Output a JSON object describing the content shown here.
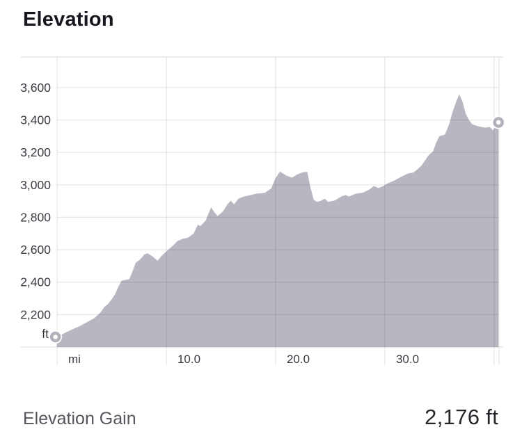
{
  "title": "Elevation",
  "summary": {
    "label": "Elevation Gain",
    "value": "2,176 ft"
  },
  "chart_data": {
    "type": "area",
    "title": "Elevation",
    "xlabel": "mi",
    "ylabel": "ft",
    "x_range": [
      0,
      40.45
    ],
    "y_range": [
      2000,
      3788
    ],
    "grid": true,
    "x_ticks": [
      {
        "mile": 0,
        "label": "mi"
      },
      {
        "mile": 10,
        "label": "10.0"
      },
      {
        "mile": 20,
        "label": "20.0"
      },
      {
        "mile": 30,
        "label": "30.0"
      },
      {
        "mile": 40,
        "label": ""
      }
    ],
    "y_ticks": [
      {
        "value": 2200,
        "label": "2,200"
      },
      {
        "value": 2400,
        "label": "2,400"
      },
      {
        "value": 2600,
        "label": "2,600"
      },
      {
        "value": 2800,
        "label": "2,800"
      },
      {
        "value": 3000,
        "label": "3,000"
      },
      {
        "value": 3200,
        "label": "3,200"
      },
      {
        "value": 3400,
        "label": "3,400"
      },
      {
        "value": 3600,
        "label": "3,600"
      }
    ],
    "y_unit_label": "ft",
    "start_point": {
      "mi": 0,
      "ft": 2062
    },
    "end_point": {
      "mi": 40.4,
      "ft": 3385
    },
    "profile": [
      [
        0,
        2062
      ],
      [
        0.4,
        2075
      ],
      [
        0.8,
        2090
      ],
      [
        1.5,
        2112
      ],
      [
        2.1,
        2130
      ],
      [
        2.7,
        2152
      ],
      [
        3.4,
        2178
      ],
      [
        4.0,
        2215
      ],
      [
        4.3,
        2245
      ],
      [
        4.7,
        2268
      ],
      [
        5.0,
        2295
      ],
      [
        5.3,
        2325
      ],
      [
        5.6,
        2370
      ],
      [
        5.9,
        2408
      ],
      [
        6.3,
        2415
      ],
      [
        6.6,
        2418
      ],
      [
        6.9,
        2465
      ],
      [
        7.2,
        2520
      ],
      [
        7.6,
        2540
      ],
      [
        8.0,
        2572
      ],
      [
        8.3,
        2578
      ],
      [
        8.7,
        2560
      ],
      [
        9.2,
        2532
      ],
      [
        9.6,
        2565
      ],
      [
        10.1,
        2595
      ],
      [
        10.6,
        2625
      ],
      [
        11.0,
        2652
      ],
      [
        11.5,
        2667
      ],
      [
        12.0,
        2675
      ],
      [
        12.5,
        2700
      ],
      [
        12.9,
        2755
      ],
      [
        13.1,
        2745
      ],
      [
        13.6,
        2780
      ],
      [
        14.1,
        2862
      ],
      [
        14.4,
        2830
      ],
      [
        14.7,
        2808
      ],
      [
        15.2,
        2838
      ],
      [
        15.6,
        2880
      ],
      [
        15.9,
        2902
      ],
      [
        16.2,
        2880
      ],
      [
        16.6,
        2915
      ],
      [
        17.1,
        2928
      ],
      [
        17.7,
        2937
      ],
      [
        18.3,
        2946
      ],
      [
        19.0,
        2950
      ],
      [
        19.6,
        2978
      ],
      [
        20.0,
        3042
      ],
      [
        20.4,
        3082
      ],
      [
        21.0,
        3057
      ],
      [
        21.5,
        3044
      ],
      [
        22.0,
        3065
      ],
      [
        22.5,
        3078
      ],
      [
        22.9,
        3080
      ],
      [
        23.2,
        2980
      ],
      [
        23.5,
        2907
      ],
      [
        23.8,
        2895
      ],
      [
        24.2,
        2903
      ],
      [
        24.5,
        2915
      ],
      [
        24.8,
        2895
      ],
      [
        25.4,
        2903
      ],
      [
        26.0,
        2928
      ],
      [
        26.4,
        2937
      ],
      [
        26.7,
        2928
      ],
      [
        27.3,
        2945
      ],
      [
        28.0,
        2952
      ],
      [
        28.6,
        2972
      ],
      [
        29.0,
        2993
      ],
      [
        29.4,
        2980
      ],
      [
        29.9,
        2994
      ],
      [
        30.2,
        3007
      ],
      [
        30.9,
        3028
      ],
      [
        31.5,
        3050
      ],
      [
        32.1,
        3070
      ],
      [
        32.6,
        3076
      ],
      [
        33.0,
        3096
      ],
      [
        33.4,
        3122
      ],
      [
        33.7,
        3152
      ],
      [
        34.0,
        3182
      ],
      [
        34.4,
        3205
      ],
      [
        34.7,
        3260
      ],
      [
        35.0,
        3300
      ],
      [
        35.5,
        3310
      ],
      [
        35.9,
        3378
      ],
      [
        36.2,
        3450
      ],
      [
        36.5,
        3508
      ],
      [
        36.8,
        3558
      ],
      [
        37.1,
        3515
      ],
      [
        37.4,
        3440
      ],
      [
        37.7,
        3400
      ],
      [
        38.0,
        3374
      ],
      [
        38.4,
        3364
      ],
      [
        38.8,
        3357
      ],
      [
        39.2,
        3353
      ],
      [
        39.6,
        3357
      ],
      [
        39.9,
        3336
      ],
      [
        40.15,
        3362
      ],
      [
        40.4,
        3385
      ]
    ],
    "legend": null,
    "colors": {
      "area_fill": "#b7b7c1",
      "grid_line": "rgba(30,30,40,0.10)",
      "border_line": "rgba(30,30,40,0.13)",
      "tick_text": "#3b3b44",
      "marker_ring": "#b1b1bc",
      "marker_center": "#ffffff",
      "title_text": "#17171f",
      "summary_label_text": "#55555d",
      "summary_value_text": "#26262c"
    }
  },
  "icons": {
    "start_marker": "route-start-marker",
    "end_marker": "route-end-marker"
  }
}
